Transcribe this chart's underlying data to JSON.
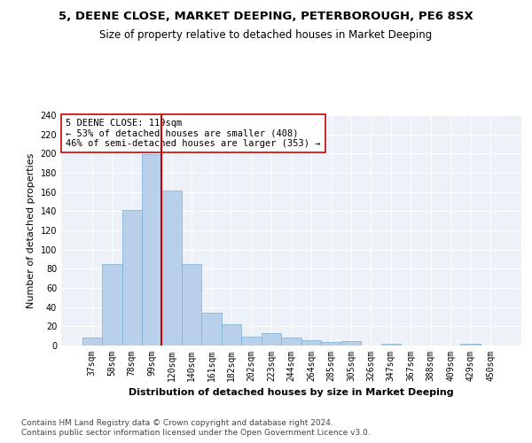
{
  "title1": "5, DEENE CLOSE, MARKET DEEPING, PETERBOROUGH, PE6 8SX",
  "title2": "Size of property relative to detached houses in Market Deeping",
  "xlabel": "Distribution of detached houses by size in Market Deeping",
  "ylabel": "Number of detached properties",
  "categories": [
    "37sqm",
    "58sqm",
    "78sqm",
    "99sqm",
    "120sqm",
    "140sqm",
    "161sqm",
    "182sqm",
    "202sqm",
    "223sqm",
    "244sqm",
    "264sqm",
    "285sqm",
    "305sqm",
    "326sqm",
    "347sqm",
    "367sqm",
    "388sqm",
    "409sqm",
    "429sqm",
    "450sqm"
  ],
  "values": [
    8,
    85,
    141,
    199,
    162,
    85,
    34,
    22,
    9,
    13,
    8,
    6,
    4,
    5,
    0,
    2,
    0,
    0,
    0,
    2,
    0
  ],
  "bar_color": "#b8d0ea",
  "bar_edge_color": "#7aafd4",
  "vline_color": "#cc0000",
  "annotation_text": "5 DEENE CLOSE: 119sqm\n← 53% of detached houses are smaller (408)\n46% of semi-detached houses are larger (353) →",
  "annotation_box_color": "white",
  "annotation_box_edge_color": "#cc0000",
  "ylim": [
    0,
    240
  ],
  "yticks": [
    0,
    20,
    40,
    60,
    80,
    100,
    120,
    140,
    160,
    180,
    200,
    220,
    240
  ],
  "footnote1": "Contains HM Land Registry data © Crown copyright and database right 2024.",
  "footnote2": "Contains public sector information licensed under the Open Government Licence v3.0.",
  "bg_color": "#edf2f9",
  "grid_color": "#ffffff",
  "title1_fontsize": 9.5,
  "title2_fontsize": 8.5,
  "ylabel_fontsize": 8,
  "xlabel_fontsize": 8,
  "tick_fontsize": 7,
  "annotation_fontsize": 7.5,
  "footnote_fontsize": 6.5
}
